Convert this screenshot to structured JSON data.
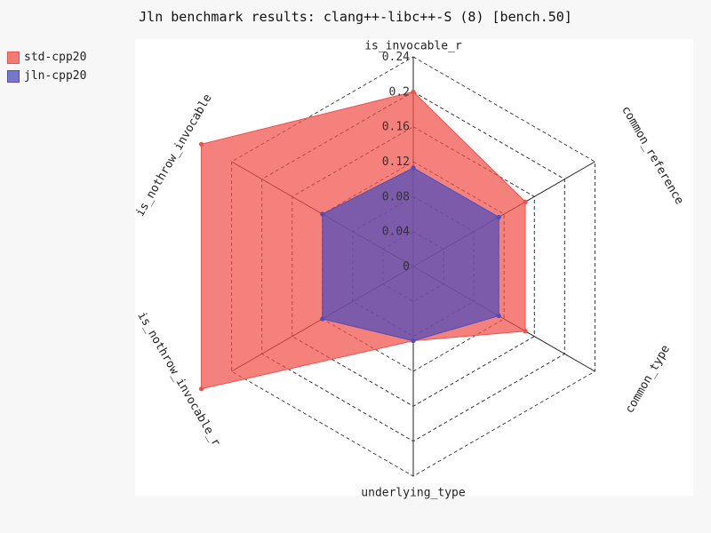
{
  "chart_data": {
    "type": "radar",
    "title": "Jln benchmark results: clang++-libc++-S (8) [bench.50]",
    "axes": [
      "is_invocable_r",
      "common_reference",
      "common_type",
      "underlying_type",
      "is_nothrow_invocable_r",
      "is_nothrow_invocable"
    ],
    "r_ticks": [
      "0",
      "0.04",
      "0.08",
      "0.12",
      "0.16",
      "0.2",
      "0.24"
    ],
    "r_range": [
      0,
      0.24
    ],
    "grid": true,
    "legend_position": "top-left",
    "series": [
      {
        "name": "std-cpp20",
        "color": "#f0514a",
        "values": [
          0.2,
          0.148,
          0.148,
          0.085,
          0.28,
          0.28
        ]
      },
      {
        "name": "jln-cpp20",
        "color": "#4d4dbc",
        "values": [
          0.113,
          0.113,
          0.113,
          0.085,
          0.12,
          0.12
        ]
      }
    ]
  }
}
